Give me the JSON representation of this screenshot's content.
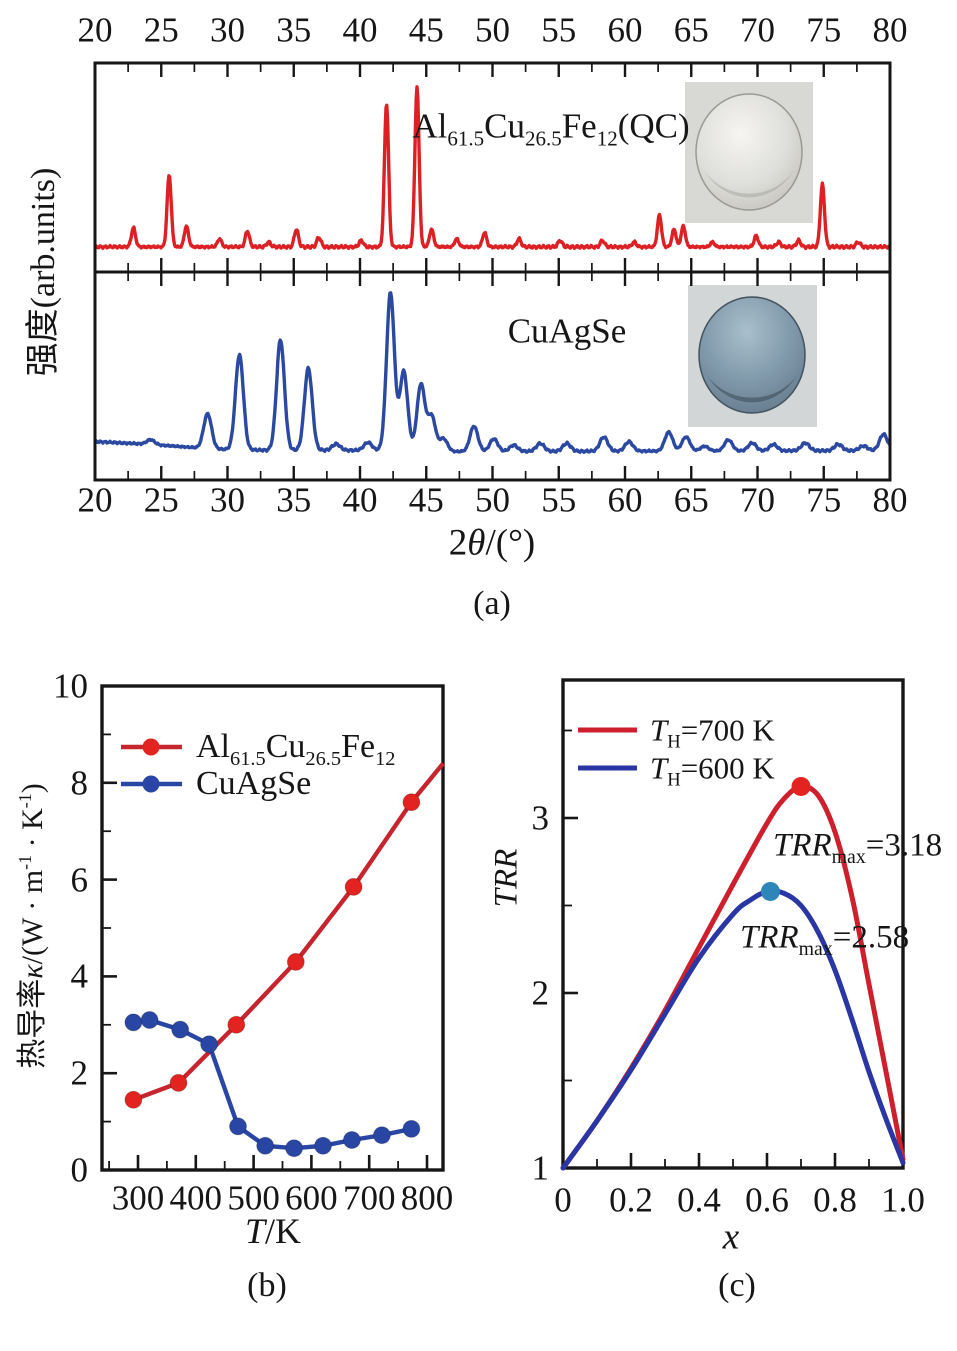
{
  "figure_captions": {
    "a": "(a)",
    "b": "(b)",
    "c": "(c)"
  },
  "colors": {
    "axis": "#161616",
    "xrd_red": "#dd2024",
    "xrd_blue": "#2c49a2",
    "kappa_red_line": "#c7252d",
    "kappa_red_marker": "#e2231f",
    "kappa_blue_line": "#2a46a5",
    "kappa_blue_marker": "#2a46a5",
    "trr_red": "#ce1f2d",
    "trr_blue": "#2936a3",
    "trr_blue_marker": "#2e86b8",
    "inset_a_bg": "#d8d8d5",
    "disc_a_light": "#f6f5f2",
    "disc_a_mid": "#dededa",
    "disc_a_dark": "#aeada8",
    "inset_b_bg": "#d3d6d6",
    "disc_b_light": "#a9bfcc",
    "disc_b_mid": "#849dae",
    "disc_b_dark": "#54697a"
  },
  "chart_data": [
    {
      "type": "line",
      "panel": "a",
      "subtype": "xrd-pattern",
      "xlabel": "2*θ*/(°)",
      "ylabel": "强度(arb.units)",
      "xlim": [
        20,
        80
      ],
      "x_ticks": [
        20,
        25,
        30,
        35,
        40,
        45,
        50,
        55,
        60,
        65,
        70,
        75,
        80
      ],
      "x_minor_step": 2.5,
      "grid": false,
      "series": [
        {
          "name": "Al_{61.5}Cu_{26.5}Fe_{12}(QC)",
          "color": "#dd2024",
          "peak_width": 0.22,
          "noise_amp": 0.01,
          "baseline": [
            [
              20,
              0.032
            ],
            [
              80,
              0.032
            ]
          ],
          "peaks": [
            [
              22.9,
              0.12
            ],
            [
              25.6,
              0.45
            ],
            [
              26.9,
              0.13
            ],
            [
              29.4,
              0.05
            ],
            [
              31.5,
              0.1
            ],
            [
              33.1,
              0.03
            ],
            [
              35.2,
              0.11
            ],
            [
              36.9,
              0.06
            ],
            [
              40.1,
              0.04
            ],
            [
              42.0,
              0.9
            ],
            [
              44.3,
              1.0
            ],
            [
              45.4,
              0.11
            ],
            [
              47.3,
              0.05
            ],
            [
              49.4,
              0.09
            ],
            [
              52.0,
              0.05
            ],
            [
              55.1,
              0.04
            ],
            [
              58.3,
              0.04
            ],
            [
              60.7,
              0.03
            ],
            [
              62.6,
              0.2
            ],
            [
              63.7,
              0.11
            ],
            [
              64.4,
              0.13
            ],
            [
              66.6,
              0.03
            ],
            [
              69.9,
              0.07
            ],
            [
              71.6,
              0.03
            ],
            [
              73.1,
              0.04
            ],
            [
              74.9,
              0.39
            ],
            [
              77.6,
              0.03
            ]
          ],
          "inset": {
            "kind": "sample-photo",
            "desc": "silver-gray polished disc"
          }
        },
        {
          "name": "CuAgSe",
          "color": "#2c49a2",
          "peak_width": 0.42,
          "noise_amp": 0.008,
          "baseline": [
            [
              20,
              0.085
            ],
            [
              24,
              0.068
            ],
            [
              27,
              0.05
            ],
            [
              29,
              0.038
            ],
            [
              33,
              0.03
            ],
            [
              44,
              0.03
            ],
            [
              47,
              0.022
            ],
            [
              79,
              0.028
            ],
            [
              80,
              0.035
            ]
          ],
          "peaks": [
            [
              24.2,
              0.03
            ],
            [
              28.5,
              0.22
            ],
            [
              30.9,
              0.6
            ],
            [
              34.0,
              0.7
            ],
            [
              36.1,
              0.52
            ],
            [
              38.2,
              0.04
            ],
            [
              40.6,
              0.05
            ],
            [
              42.3,
              1.0
            ],
            [
              43.3,
              0.5
            ],
            [
              44.6,
              0.42
            ],
            [
              45.4,
              0.22
            ],
            [
              46.3,
              0.08
            ],
            [
              48.6,
              0.16
            ],
            [
              50.1,
              0.08
            ],
            [
              51.6,
              0.04
            ],
            [
              53.6,
              0.05
            ],
            [
              55.6,
              0.05
            ],
            [
              58.4,
              0.09
            ],
            [
              60.3,
              0.06
            ],
            [
              63.3,
              0.12
            ],
            [
              64.6,
              0.09
            ],
            [
              66.0,
              0.03
            ],
            [
              67.8,
              0.07
            ],
            [
              69.6,
              0.05
            ],
            [
              71.2,
              0.04
            ],
            [
              73.6,
              0.05
            ],
            [
              76.1,
              0.04
            ],
            [
              78.0,
              0.03
            ],
            [
              79.5,
              0.1
            ]
          ],
          "inset": {
            "kind": "sample-photo",
            "desc": "steel-blue polished disc"
          }
        }
      ]
    },
    {
      "type": "line",
      "panel": "b",
      "xlabel": "*T*/K",
      "ylabel": "热导率*κ*/(W · m^{-1} · K^{-1})",
      "xlim": [
        238,
        828
      ],
      "ylim": [
        0,
        10
      ],
      "x_ticks": [
        300,
        400,
        500,
        600,
        700,
        800
      ],
      "x_minor_step": 50,
      "y_ticks": [
        0,
        2,
        4,
        6,
        8,
        10
      ],
      "y_minor_step": 1,
      "legend_position": "top-left-inside",
      "grid": false,
      "series": [
        {
          "name": "Al_{61.5}Cu_{26.5}Fe_{12}",
          "color_line": "#c7252d",
          "color_marker": "#e2231f",
          "marker": "circle",
          "points": [
            [
              292,
              1.45
            ],
            [
              370,
              1.8
            ],
            [
              470,
              3.0
            ],
            [
              573,
              4.3
            ],
            [
              673,
              5.85
            ],
            [
              773,
              7.6
            ]
          ],
          "line_extend": [
            828,
            8.4
          ]
        },
        {
          "name": "CuAgSe",
          "color_line": "#2a46a5",
          "color_marker": "#2a46a5",
          "marker": "circle",
          "points": [
            [
              292,
              3.05
            ],
            [
              320,
              3.1
            ],
            [
              373,
              2.9
            ],
            [
              423,
              2.6
            ],
            [
              473,
              0.9
            ],
            [
              520,
              0.5
            ],
            [
              570,
              0.45
            ],
            [
              620,
              0.5
            ],
            [
              670,
              0.62
            ],
            [
              722,
              0.72
            ],
            [
              773,
              0.85
            ]
          ]
        }
      ]
    },
    {
      "type": "line",
      "panel": "c",
      "xlabel": "*x*",
      "ylabel": "*TRR*",
      "xlim": [
        0,
        1.0
      ],
      "ylim": [
        1,
        3.79
      ],
      "x_ticks": [
        0,
        0.2,
        0.4,
        0.6,
        0.8,
        1.0
      ],
      "x_tick_labels": [
        "0",
        "0.2",
        "0.4",
        "0.6",
        "0.8",
        "1.0"
      ],
      "x_minor_step": 0.1,
      "y_ticks": [
        1,
        2,
        3
      ],
      "y_minor_step": 0.5,
      "legend_position": "top-left-inside",
      "grid": false,
      "series": [
        {
          "name": "*T*_{H}=700 K",
          "color": "#ce1f2d",
          "points": [
            [
              0,
              1.0
            ],
            [
              0.1,
              1.27
            ],
            [
              0.2,
              1.57
            ],
            [
              0.3,
              1.9
            ],
            [
              0.4,
              2.26
            ],
            [
              0.5,
              2.62
            ],
            [
              0.6,
              2.97
            ],
            [
              0.65,
              3.11
            ],
            [
              0.7,
              3.18
            ],
            [
              0.75,
              3.13
            ],
            [
              0.8,
              2.92
            ],
            [
              0.85,
              2.55
            ],
            [
              0.9,
              2.05
            ],
            [
              0.95,
              1.55
            ],
            [
              1.0,
              1.05
            ]
          ],
          "max_marker": [
            0.7,
            3.18
          ],
          "max_marker_color": "#e2231f",
          "max_label": "*TRR*_{max}=3.18"
        },
        {
          "name": "*T*_{H}=600 K",
          "color": "#2936a3",
          "points": [
            [
              0,
              1.0
            ],
            [
              0.1,
              1.27
            ],
            [
              0.2,
              1.56
            ],
            [
              0.3,
              1.88
            ],
            [
              0.4,
              2.2
            ],
            [
              0.5,
              2.45
            ],
            [
              0.55,
              2.53
            ],
            [
              0.6,
              2.58
            ],
            [
              0.65,
              2.57
            ],
            [
              0.7,
              2.5
            ],
            [
              0.75,
              2.35
            ],
            [
              0.8,
              2.13
            ],
            [
              0.85,
              1.85
            ],
            [
              0.9,
              1.55
            ],
            [
              0.95,
              1.28
            ],
            [
              1.0,
              1.03
            ]
          ],
          "max_marker": [
            0.61,
            2.58
          ],
          "max_marker_color": "#2e86b8",
          "max_label": "*TRR*_{max}=2.58"
        }
      ]
    }
  ]
}
